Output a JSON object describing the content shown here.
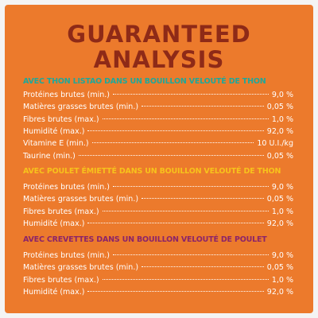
{
  "title": [
    "GUARANTEED",
    "ANALYSIS"
  ],
  "sections": [
    {
      "heading": "AVEC THON LISTAO DANS UN BOUILLON VELOUTÉ DE THON",
      "color": "#1fa89a",
      "rows": [
        [
          "Protéines brutes (min.)",
          "9,0 %"
        ],
        [
          "Matières grasses brutes (min.)",
          "0,05 %"
        ],
        [
          "Fibres brutes (max.)",
          "1,0 %"
        ],
        [
          "Humidité (max.)",
          "92,0 %"
        ],
        [
          "Vitamine E (min.)",
          "10 U.I./kg"
        ],
        [
          "Taurine (min.)",
          "0,05 %"
        ]
      ]
    },
    {
      "heading": "AVEC POULET ÉMIETTÉ DANS UN BOUILLON VELOUTÉ DE THON",
      "color": "#f7c21c",
      "rows": [
        [
          "Protéines brutes (min.)",
          "9,0 %"
        ],
        [
          "Matières grasses brutes (min.)",
          "0,05 %"
        ],
        [
          "Fibres brutes (max.)",
          "1,0 %"
        ],
        [
          "Humidité (max.)",
          "92,0 %"
        ]
      ]
    },
    {
      "heading": "AVEC CREVETTES DANS UN BOUILLON VELOUTÉ DE POULET",
      "color": "#8c2468",
      "rows": [
        [
          "Protéines brutes (min.)",
          "9,0 %"
        ],
        [
          "Matières grasses brutes (min.)",
          "0,05 %"
        ],
        [
          "Fibres brutes (max.)",
          "1,0 %"
        ],
        [
          "Humidité (max.)",
          "92,0 %"
        ]
      ]
    }
  ]
}
